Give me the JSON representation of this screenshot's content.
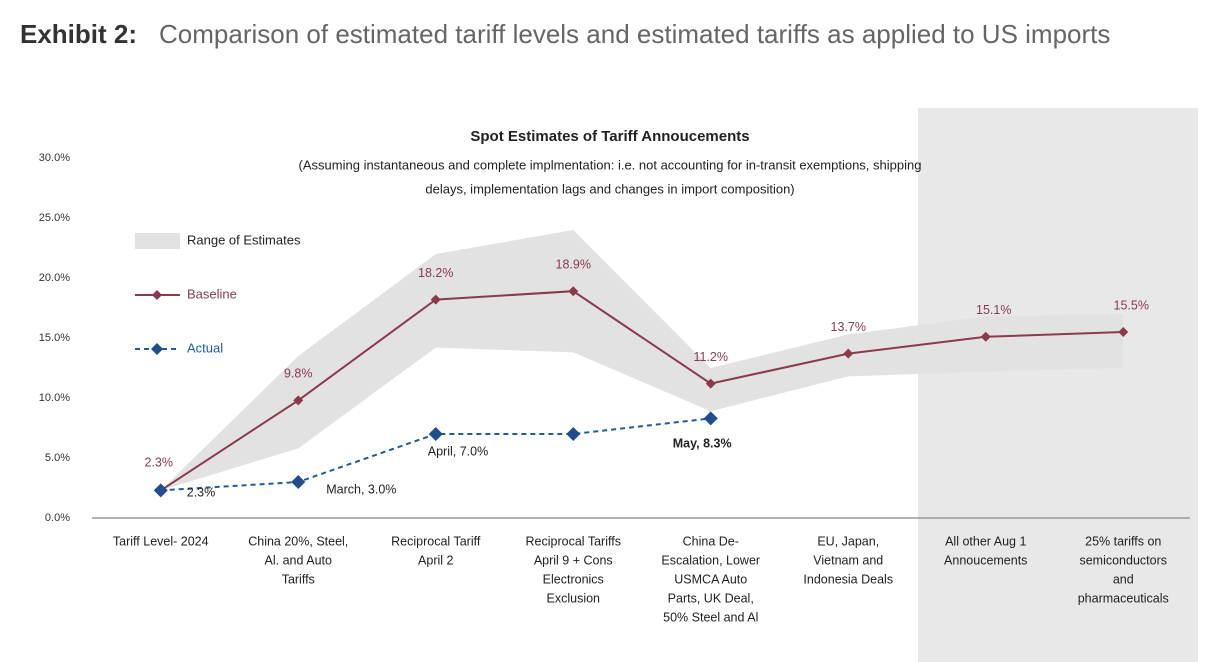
{
  "header": {
    "label": "Exhibit 2:",
    "title": "Comparison of estimated tariff levels and estimated tariffs as applied to US imports"
  },
  "chart_data": {
    "type": "line",
    "title": "Spot Estimates of Tariff Annoucements",
    "subtitle": [
      "(Assuming instantaneous and complete implmentation: i.e. not accounting for in-transit exemptions, shipping",
      "delays, implementation lags and changes in import composition)"
    ],
    "categories": [
      [
        "Tariff Level- 2024"
      ],
      [
        "China 20%, Steel,",
        "Al. and Auto",
        "Tariffs"
      ],
      [
        "Reciprocal Tariff",
        "April 2"
      ],
      [
        "Reciprocal Tariffs",
        "April 9 + Cons",
        "Electronics",
        "Exclusion"
      ],
      [
        "China De-",
        "Escalation, Lower",
        "USMCA Auto",
        "Parts, UK Deal,",
        "50% Steel and Al"
      ],
      [
        "EU, Japan,",
        "Vietnam and",
        "Indonesia Deals"
      ],
      [
        "All other Aug 1",
        "Annoucements"
      ],
      [
        "25% tariffs on",
        "semiconductors",
        "and",
        "pharmaceuticals"
      ]
    ],
    "series": [
      {
        "name": "Range of Estimates",
        "color": "#e2e2e2",
        "low": [
          2.3,
          5.8,
          14.2,
          13.8,
          8.9,
          11.8,
          12.2,
          12.5
        ],
        "high": [
          2.3,
          13.5,
          22,
          24,
          12.5,
          15.3,
          16.8,
          17
        ]
      },
      {
        "name": "Baseline",
        "color": "#8b3a4c",
        "values": [
          2.3,
          9.8,
          18.2,
          18.9,
          11.2,
          13.7,
          15.1,
          15.5
        ],
        "value_labels": [
          "2.3%",
          "9.8%",
          "18.2%",
          "18.9%",
          "11.2%",
          "13.7%",
          "15.1%",
          "15.5%"
        ]
      },
      {
        "name": "Actual",
        "color": "#1f5c99",
        "values": [
          2.3,
          3.0,
          7.0,
          7.0,
          8.3,
          null,
          null,
          null
        ],
        "value_labels": [
          "2.3%",
          "March, 3.0%",
          "April, 7.0%",
          null,
          "May, 8.3%",
          null,
          null,
          null
        ]
      }
    ],
    "ylim": [
      0,
      30
    ],
    "yticks": [
      {
        "value": 0,
        "label": "0.0%"
      },
      {
        "value": 5,
        "label": "5.0%"
      },
      {
        "value": 10,
        "label": "10.0%"
      },
      {
        "value": 15,
        "label": "15.0%"
      },
      {
        "value": 20,
        "label": "20.0%"
      },
      {
        "value": 25,
        "label": "25.0%"
      },
      {
        "value": 30,
        "label": "30.0%"
      }
    ]
  }
}
